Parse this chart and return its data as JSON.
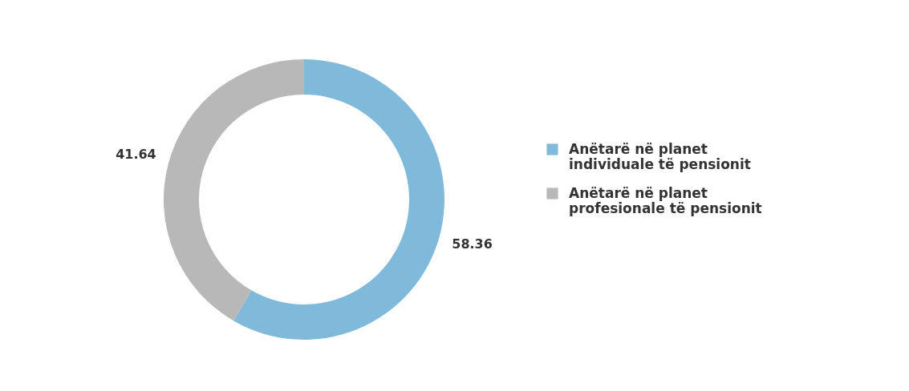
{
  "chart_data": {
    "type": "donut",
    "categories": [
      "Anëtarë në planet individuale të pensionit",
      "Anëtarë në planet profesionale të pensionit"
    ],
    "values": [
      58.36,
      41.64
    ],
    "colors": [
      "#80badb",
      "#b8b8b8"
    ],
    "data_labels": true,
    "legend": "right"
  }
}
